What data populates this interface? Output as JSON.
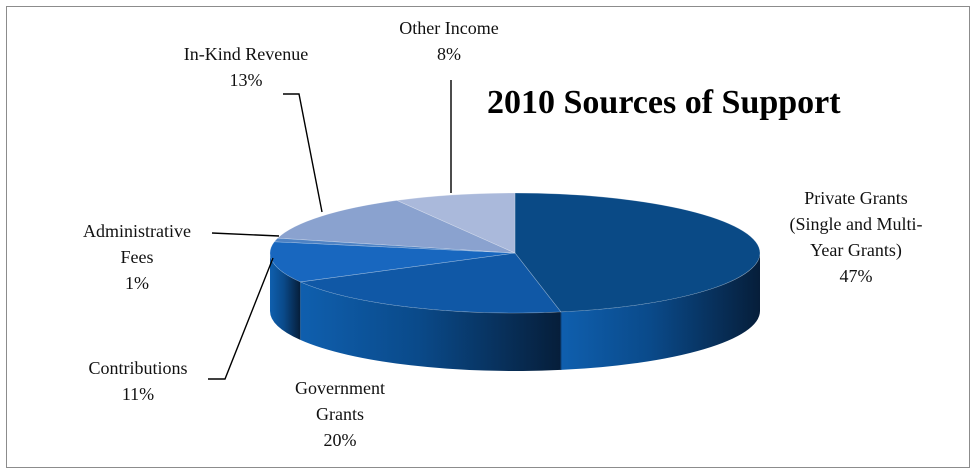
{
  "chart_data": {
    "type": "pie",
    "title": "2010 Sources of Support",
    "slices": [
      {
        "label_lines": [
          "Private Grants",
          "(Single and Multi-",
          "Year Grants)"
        ],
        "pct_label": "47%",
        "value": 47,
        "color": "#0a4a86"
      },
      {
        "label_lines": [
          "Government",
          "Grants"
        ],
        "pct_label": "20%",
        "value": 20,
        "color": "#1058a6"
      },
      {
        "label_lines": [
          "Contributions"
        ],
        "pct_label": "11%",
        "value": 11,
        "color": "#1867bf"
      },
      {
        "label_lines": [
          "Administrative",
          "Fees"
        ],
        "pct_label": "1%",
        "value": 1,
        "color": "#4d82c4"
      },
      {
        "label_lines": [
          "In-Kind Revenue"
        ],
        "pct_label": "13%",
        "value": 13,
        "color": "#8aa2cf"
      },
      {
        "label_lines": [
          "Other Income"
        ],
        "pct_label": "8%",
        "value": 8,
        "color": "#aab9db"
      }
    ],
    "legend": "none",
    "grid": false
  }
}
